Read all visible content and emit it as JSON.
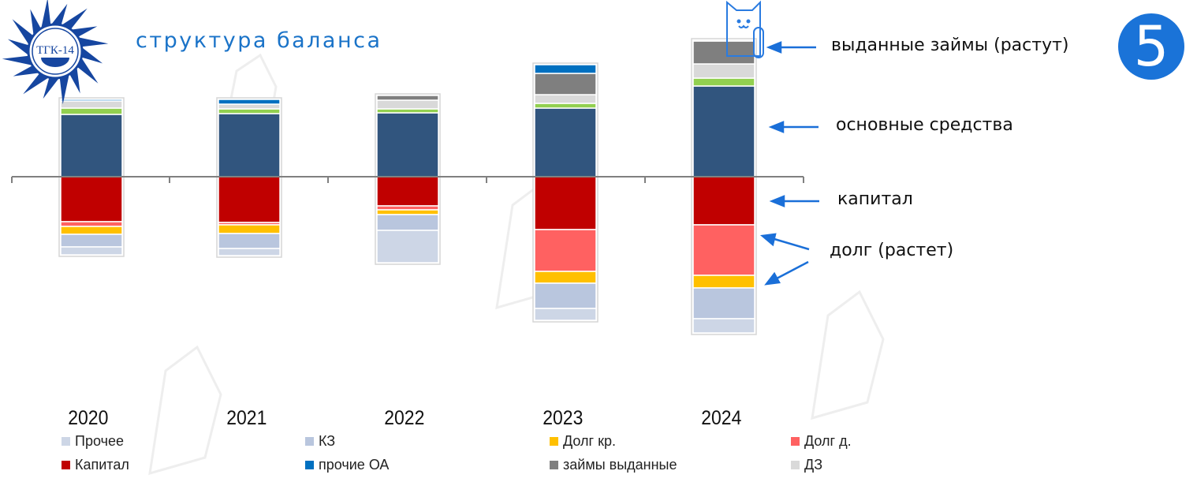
{
  "title": "структура баланса",
  "logo_text": "ТГК-14",
  "badge": "5",
  "annotations": {
    "loans": "выданные займы (растут)",
    "fixed_assets": "основные средства",
    "capital": "капитал",
    "debt": "долг (растет)"
  },
  "colors": {
    "arrow": "#1a6fd8",
    "title": "#1a73c8"
  },
  "chart_data": {
    "type": "bar",
    "stacked": true,
    "title": "структура баланса",
    "categories": [
      "2020",
      "2021",
      "2022",
      "2023",
      "2024"
    ],
    "units": "relative (estimated from bar heights)",
    "assets_series": [
      {
        "key": "fixed",
        "name": "",
        "color": "#31557e",
        "values": [
          79,
          80,
          81,
          87,
          115
        ]
      },
      {
        "key": "green",
        "name": "",
        "color": "#92d050",
        "values": [
          8,
          6,
          5,
          6,
          10
        ]
      },
      {
        "key": "dz",
        "name": "ДЗ",
        "color": "#d9d9d9",
        "values": [
          9,
          6,
          11,
          11,
          18
        ]
      },
      {
        "key": "loans",
        "name": "займы выданные",
        "color": "#7f7f7f",
        "values": [
          0,
          0,
          6,
          27,
          29
        ]
      },
      {
        "key": "other_ca",
        "name": "прочие ОА",
        "color": "#0070c0",
        "values": [
          2,
          6,
          0,
          11,
          1
        ]
      }
    ],
    "liabilities_series": [
      {
        "key": "capital",
        "name": "Капитал",
        "color": "#c00000",
        "values": [
          57,
          58,
          37,
          67,
          61
        ]
      },
      {
        "key": "debt_lt",
        "name": "Долг д.",
        "color": "#ff6161",
        "values": [
          6,
          3,
          5,
          53,
          64
        ]
      },
      {
        "key": "debt_st",
        "name": "Долг кр.",
        "color": "#ffc000",
        "values": [
          10,
          11,
          6,
          15,
          16
        ]
      },
      {
        "key": "kz",
        "name": "КЗ",
        "color": "#b9c6de",
        "values": [
          16,
          19,
          20,
          32,
          39
        ]
      },
      {
        "key": "other",
        "name": "Прочее",
        "color": "#cdd6e6",
        "values": [
          10,
          9,
          41,
          15,
          18
        ]
      }
    ],
    "legend": [
      {
        "name": "Прочее",
        "color": "#cdd6e6"
      },
      {
        "name": "КЗ",
        "color": "#b9c6de"
      },
      {
        "name": "Долг кр.",
        "color": "#ffc000"
      },
      {
        "name": "Долг д.",
        "color": "#ff6161"
      },
      {
        "name": "Капитал",
        "color": "#c00000"
      },
      {
        "name": "прочие ОА",
        "color": "#0070c0"
      },
      {
        "name": "займы выданные",
        "color": "#7f7f7f"
      },
      {
        "name": "ДЗ",
        "color": "#d9d9d9"
      }
    ],
    "legend_position": "bottom",
    "grid": false
  }
}
